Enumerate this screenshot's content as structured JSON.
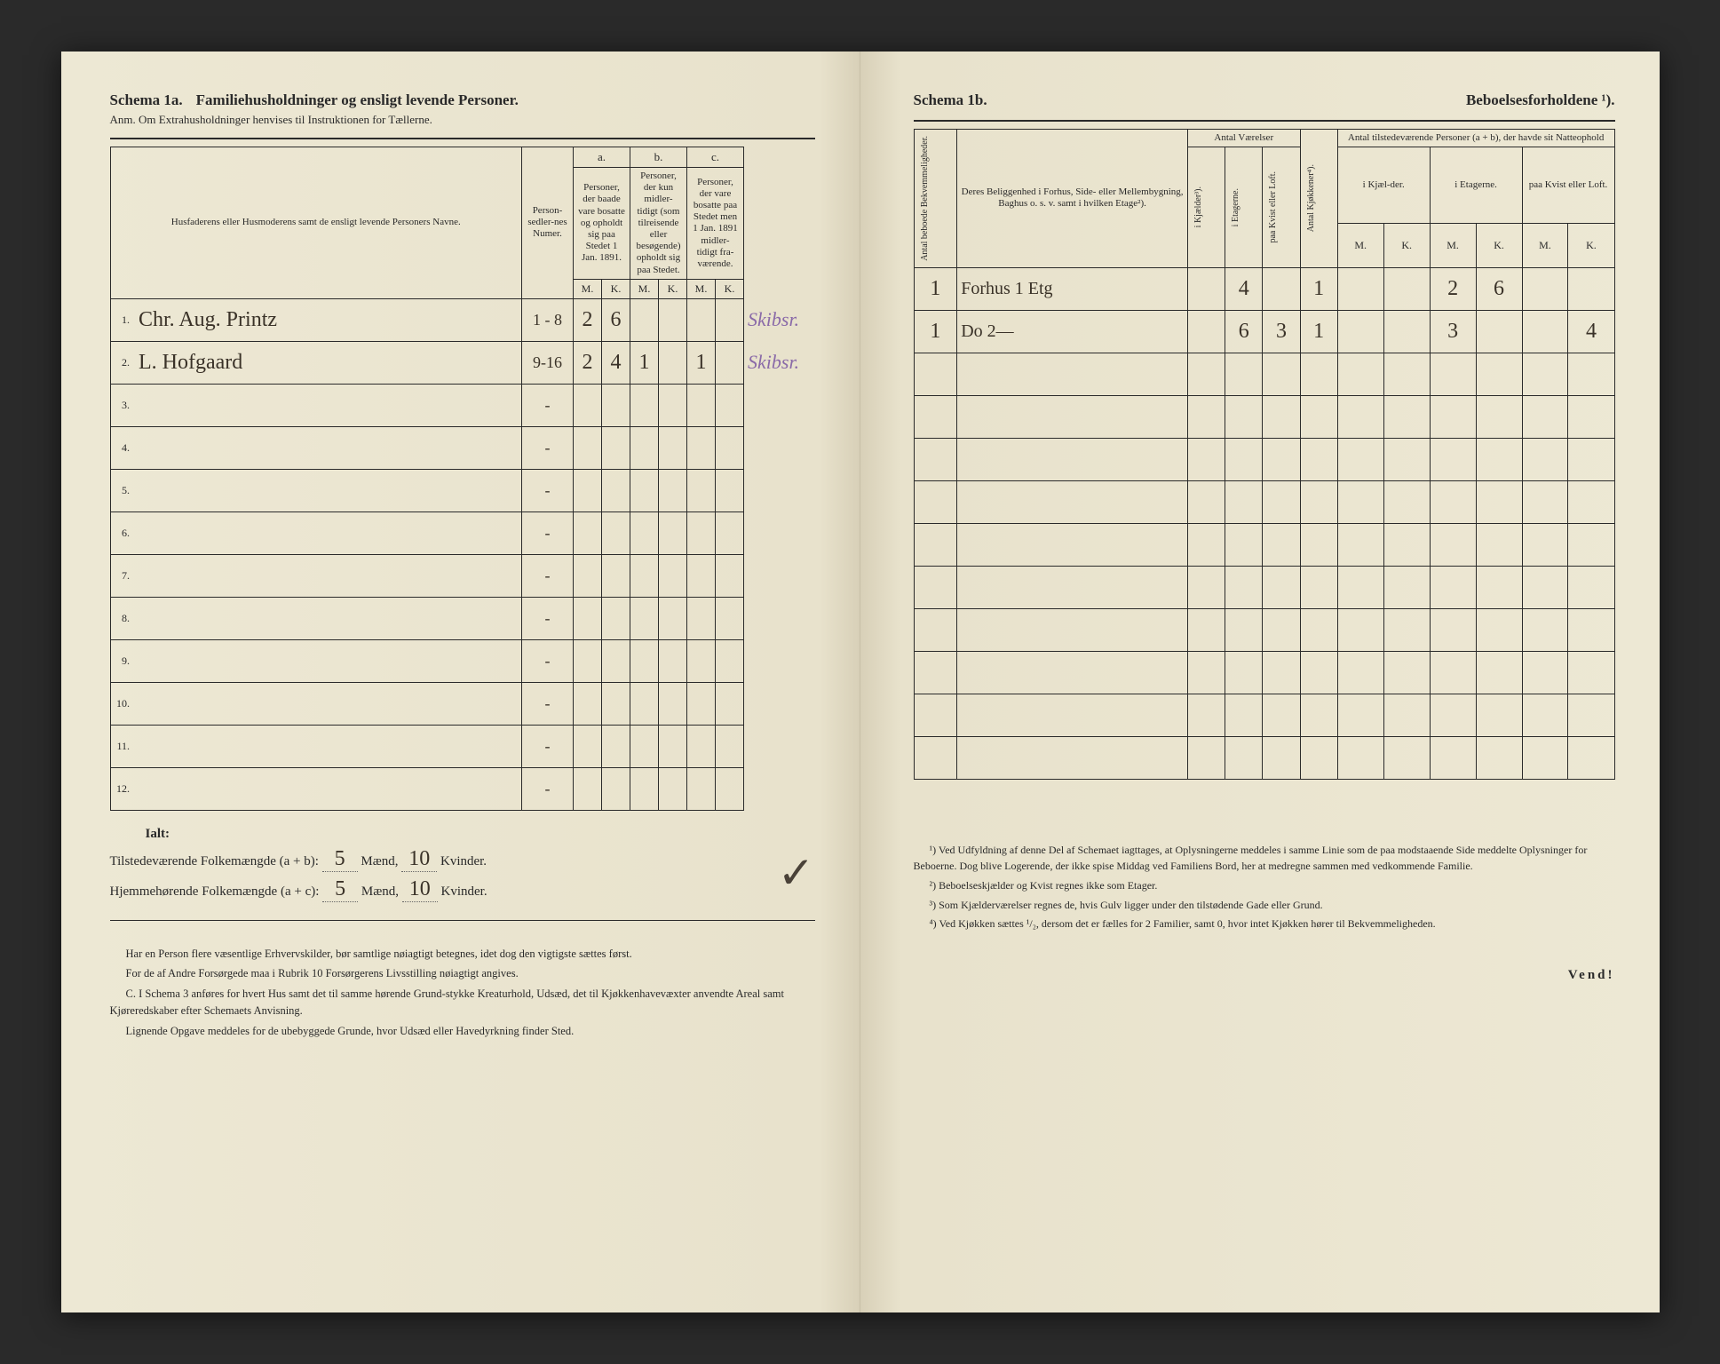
{
  "left": {
    "schema_label": "Schema 1a.",
    "schema_title": "Familiehusholdninger og ensligt levende Personer.",
    "subtitle": "Anm. Om Extrahusholdninger henvises til Instruktionen for Tællerne.",
    "columns": {
      "name_header": "Husfaderens eller Husmoderens samt de ensligt levende Personers Navne.",
      "numer_header": "Person-sedler-nes Numer.",
      "a_label": "a.",
      "a_text": "Personer, der baade vare bosatte og opholdt sig paa Stedet 1 Jan. 1891.",
      "b_label": "b.",
      "b_text": "Personer, der kun midler-tidigt (som tilreisende eller besøgende) opholdt sig paa Stedet.",
      "c_label": "c.",
      "c_text": "Personer, der vare bosatte paa Stedet men 1 Jan. 1891 midler-tidigt fra-værende.",
      "M": "M.",
      "K": "K."
    },
    "rows": [
      {
        "num": "1.",
        "name": "Chr. Aug. Printz",
        "numer": "1 - 8",
        "aM": "2",
        "aK": "6",
        "bM": "",
        "bK": "",
        "cM": "",
        "cK": "",
        "note": "Skibsr."
      },
      {
        "num": "2.",
        "name": "L. Hofgaard",
        "numer": "9-16",
        "aM": "2",
        "aK": "4",
        "bM": "1",
        "bK": "",
        "cM": "1",
        "cK": "",
        "note": "Skibsr."
      },
      {
        "num": "3.",
        "name": "",
        "numer": "-",
        "aM": "",
        "aK": "",
        "bM": "",
        "bK": "",
        "cM": "",
        "cK": "",
        "note": ""
      },
      {
        "num": "4.",
        "name": "",
        "numer": "-",
        "aM": "",
        "aK": "",
        "bM": "",
        "bK": "",
        "cM": "",
        "cK": "",
        "note": ""
      },
      {
        "num": "5.",
        "name": "",
        "numer": "-",
        "aM": "",
        "aK": "",
        "bM": "",
        "bK": "",
        "cM": "",
        "cK": "",
        "note": ""
      },
      {
        "num": "6.",
        "name": "",
        "numer": "-",
        "aM": "",
        "aK": "",
        "bM": "",
        "bK": "",
        "cM": "",
        "cK": "",
        "note": ""
      },
      {
        "num": "7.",
        "name": "",
        "numer": "-",
        "aM": "",
        "aK": "",
        "bM": "",
        "bK": "",
        "cM": "",
        "cK": "",
        "note": ""
      },
      {
        "num": "8.",
        "name": "",
        "numer": "-",
        "aM": "",
        "aK": "",
        "bM": "",
        "bK": "",
        "cM": "",
        "cK": "",
        "note": ""
      },
      {
        "num": "9.",
        "name": "",
        "numer": "-",
        "aM": "",
        "aK": "",
        "bM": "",
        "bK": "",
        "cM": "",
        "cK": "",
        "note": ""
      },
      {
        "num": "10.",
        "name": "",
        "numer": "-",
        "aM": "",
        "aK": "",
        "bM": "",
        "bK": "",
        "cM": "",
        "cK": "",
        "note": ""
      },
      {
        "num": "11.",
        "name": "",
        "numer": "-",
        "aM": "",
        "aK": "",
        "bM": "",
        "bK": "",
        "cM": "",
        "cK": "",
        "note": ""
      },
      {
        "num": "12.",
        "name": "",
        "numer": "-",
        "aM": "",
        "aK": "",
        "bM": "",
        "bK": "",
        "cM": "",
        "cK": "",
        "note": ""
      }
    ],
    "summary": {
      "ialt": "Ialt:",
      "line1_a": "Tilstedeværende Folkemængde (a + b):",
      "line1_m": "5",
      "line1_mlabel": "Mænd,",
      "line1_k": "10",
      "line1_klabel": "Kvinder.",
      "line2_a": "Hjemmehørende Folkemængde (a + c):",
      "line2_m": "5",
      "line2_mlabel": "Mænd,",
      "line2_k": "10",
      "line2_klabel": "Kvinder.",
      "check": "✓"
    },
    "footnotes": [
      "Har en Person flere væsentlige Erhvervskilder, bør samtlige nøiagtigt betegnes, idet dog den vigtigste sættes først.",
      "For de af Andre Forsørgede maa i Rubrik 10 Forsørgerens Livsstilling nøiagtigt angives.",
      "C. I Schema 3 anføres for hvert Hus samt det til samme hørende Grund-stykke Kreaturhold, Udsæd, det til Kjøkkenhavevæxter anvendte Areal samt Kjøreredskaber efter Schemaets Anvisning.",
      "Lignende Opgave meddeles for de ubebyggede Grunde, hvor Udsæd eller Havedyrkning finder Sted."
    ]
  },
  "right": {
    "schema_label": "Schema 1b.",
    "schema_title": "Beboelsesforholdene ¹).",
    "columns": {
      "antal_bekv": "Antal beboede Bekvemmeligheder.",
      "beliggenhed": "Deres Beliggenhed i Forhus, Side- eller Mellembygning, Baghus o. s. v. samt i hvilken Etage²).",
      "antal_vaerelser": "Antal Værelser",
      "kjaelder": "i Kjælder³).",
      "etagerne": "i Etagerne.",
      "kvist": "paa Kvist eller Loft.",
      "kjokkener": "Antal Kjøkkener⁴).",
      "antal_tilst": "Antal tilstedeværende Personer (a + b), der havde sit Natteophold",
      "in_kjael": "i Kjæl-der.",
      "in_etag": "i Etagerne.",
      "paa_kvist": "paa Kvist eller Loft.",
      "M": "M.",
      "K": "K."
    },
    "rows": [
      {
        "bekv": "1",
        "belig": "Forhus 1 Etg",
        "kj": "",
        "et": "4",
        "kv": "",
        "kjok": "1",
        "kjM": "",
        "kjK": "",
        "etM": "2",
        "etK": "6",
        "kvM": "",
        "kvK": ""
      },
      {
        "bekv": "1",
        "belig": "Do   2—",
        "kj": "",
        "et": "6",
        "kv": "3",
        "kjok": "1",
        "kjM": "",
        "kjK": "",
        "etM": "3",
        "etK": "",
        "kvM": "",
        "kvK": "4"
      },
      {
        "bekv": "",
        "belig": "",
        "kj": "",
        "et": "",
        "kv": "",
        "kjok": "",
        "kjM": "",
        "kjK": "",
        "etM": "",
        "etK": "",
        "kvM": "",
        "kvK": ""
      },
      {
        "bekv": "",
        "belig": "",
        "kj": "",
        "et": "",
        "kv": "",
        "kjok": "",
        "kjM": "",
        "kjK": "",
        "etM": "",
        "etK": "",
        "kvM": "",
        "kvK": ""
      },
      {
        "bekv": "",
        "belig": "",
        "kj": "",
        "et": "",
        "kv": "",
        "kjok": "",
        "kjM": "",
        "kjK": "",
        "etM": "",
        "etK": "",
        "kvM": "",
        "kvK": ""
      },
      {
        "bekv": "",
        "belig": "",
        "kj": "",
        "et": "",
        "kv": "",
        "kjok": "",
        "kjM": "",
        "kjK": "",
        "etM": "",
        "etK": "",
        "kvM": "",
        "kvK": ""
      },
      {
        "bekv": "",
        "belig": "",
        "kj": "",
        "et": "",
        "kv": "",
        "kjok": "",
        "kjM": "",
        "kjK": "",
        "etM": "",
        "etK": "",
        "kvM": "",
        "kvK": ""
      },
      {
        "bekv": "",
        "belig": "",
        "kj": "",
        "et": "",
        "kv": "",
        "kjok": "",
        "kjM": "",
        "kjK": "",
        "etM": "",
        "etK": "",
        "kvM": "",
        "kvK": ""
      },
      {
        "bekv": "",
        "belig": "",
        "kj": "",
        "et": "",
        "kv": "",
        "kjok": "",
        "kjM": "",
        "kjK": "",
        "etM": "",
        "etK": "",
        "kvM": "",
        "kvK": ""
      },
      {
        "bekv": "",
        "belig": "",
        "kj": "",
        "et": "",
        "kv": "",
        "kjok": "",
        "kjM": "",
        "kjK": "",
        "etM": "",
        "etK": "",
        "kvM": "",
        "kvK": ""
      },
      {
        "bekv": "",
        "belig": "",
        "kj": "",
        "et": "",
        "kv": "",
        "kjok": "",
        "kjM": "",
        "kjK": "",
        "etM": "",
        "etK": "",
        "kvM": "",
        "kvK": ""
      },
      {
        "bekv": "",
        "belig": "",
        "kj": "",
        "et": "",
        "kv": "",
        "kjok": "",
        "kjM": "",
        "kjK": "",
        "etM": "",
        "etK": "",
        "kvM": "",
        "kvK": ""
      }
    ],
    "footnotes": [
      "¹) Ved Udfyldning af denne Del af Schemaet iagttages, at Oplysningerne meddeles i samme Linie som de paa modstaaende Side meddelte Oplysninger for Beboerne. Dog blive Logerende, der ikke spise Middag ved Familiens Bord, her at medregne sammen med vedkommende Familie.",
      "²) Beboelseskjælder og Kvist regnes ikke som Etager.",
      "³) Som Kjælderværelser regnes de, hvis Gulv ligger under den tilstødende Gade eller Grund.",
      "⁴) Ved Kjøkken sættes ¹/₂, dersom det er fælles for 2 Familier, samt 0, hvor intet Kjøkken hører til Bekvemmeligheden."
    ],
    "vend": "Vend!"
  },
  "style": {
    "paper_color": "#ede8d4",
    "ink_color": "#2a2a2a",
    "cursive_color": "#3a3228",
    "purple_color": "#8a6aa8",
    "border_color": "#2a2a2a"
  }
}
